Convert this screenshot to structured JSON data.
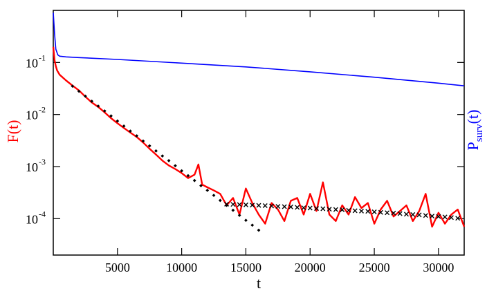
{
  "chart_data": {
    "type": "line",
    "xlabel": "t",
    "ylabel_left": "F(t)",
    "ylabel_right": "P",
    "ylabel_right_sub": "surv",
    "ylabel_right_suffix": "(t)",
    "xlim": [
      0,
      32000
    ],
    "ylim": [
      2e-05,
      1
    ],
    "yscale": "log",
    "grid": false,
    "x_ticks": [
      5000,
      10000,
      15000,
      20000,
      25000,
      30000
    ],
    "x_tick_labels": [
      "5000",
      "10000",
      "15000",
      "20000",
      "25000",
      "30000"
    ],
    "y_ticks": [
      0.1,
      0.01,
      0.001,
      0.0001
    ],
    "y_tick_base": "10",
    "y_tick_exponents": [
      "-1",
      "-2",
      "-3",
      "-4"
    ],
    "colors": {
      "F": "#ff0000",
      "P": "#0000ff",
      "fit": "#000000",
      "axes": "#000000"
    },
    "series": [
      {
        "key": "P",
        "style": "line",
        "x": [
          0,
          100,
          200,
          350,
          500,
          1000,
          2000,
          5000,
          10000,
          15000,
          20000,
          25000,
          30000,
          32000
        ],
        "y": [
          0.9,
          0.35,
          0.18,
          0.14,
          0.132,
          0.128,
          0.124,
          0.114,
          0.097,
          0.082,
          0.066,
          0.052,
          0.04,
          0.0355
        ]
      },
      {
        "key": "F",
        "style": "line",
        "x": [
          0,
          50,
          100,
          200,
          300,
          500,
          1000,
          1500,
          2000,
          2500,
          3000,
          3500,
          4000,
          4500,
          5000,
          5500,
          6000,
          6500,
          7000,
          7500,
          8000,
          8500,
          9000,
          9500,
          10000,
          10500,
          11000,
          11300,
          11600,
          12000,
          12500,
          13000,
          13500,
          14000,
          14500,
          15000,
          15500,
          16000,
          16500,
          17000,
          17500,
          18000,
          18500,
          19000,
          19500,
          20000,
          20500,
          21000,
          21500,
          22000,
          22500,
          23000,
          23500,
          24000,
          24500,
          25000,
          25500,
          26000,
          26500,
          27000,
          27500,
          28000,
          28500,
          29000,
          29500,
          30000,
          30500,
          31000,
          31500,
          32000
        ],
        "y": [
          0.2,
          0.15,
          0.11,
          0.085,
          0.07,
          0.058,
          0.045,
          0.036,
          0.029,
          0.022,
          0.017,
          0.014,
          0.011,
          0.0085,
          0.0068,
          0.0055,
          0.0045,
          0.0037,
          0.0029,
          0.0022,
          0.0017,
          0.0013,
          0.00105,
          0.0009,
          0.00075,
          0.0006,
          0.0007,
          0.0011,
          0.00045,
          0.0004,
          0.00035,
          0.0003,
          0.00018,
          0.00025,
          0.00012,
          0.00038,
          0.0002,
          0.00012,
          8e-05,
          0.0002,
          0.00015,
          9e-05,
          0.00022,
          0.00025,
          0.00012,
          0.0003,
          0.00014,
          0.0005,
          0.00012,
          9e-05,
          0.00018,
          0.00012,
          0.00026,
          0.00016,
          0.0002,
          8e-05,
          0.00015,
          0.00022,
          0.00011,
          0.00014,
          0.00018,
          9e-05,
          0.00014,
          0.0003,
          7e-05,
          0.00013,
          8e-05,
          0.00012,
          0.00015,
          7e-05
        ]
      },
      {
        "key": "fit_dots",
        "style": "points-diamond",
        "x": [
          1500,
          2000,
          2500,
          3000,
          3500,
          4000,
          4500,
          5000,
          5500,
          6000,
          6500,
          7000,
          7500,
          8000,
          8500,
          9000,
          9500,
          10000,
          10500,
          11000,
          11500,
          12000,
          12500,
          13000,
          13500,
          14000,
          14500,
          15000,
          15500,
          16000
        ],
        "y": [
          0.035,
          0.028,
          0.0225,
          0.018,
          0.0145,
          0.0117,
          0.0094,
          0.0075,
          0.006,
          0.0048,
          0.0039,
          0.0031,
          0.0025,
          0.002,
          0.0016,
          0.0013,
          0.00104,
          0.00083,
          0.00067,
          0.00054,
          0.00043,
          0.00035,
          0.00028,
          0.000224,
          0.00018,
          0.000145,
          0.000116,
          9.3e-05,
          7.5e-05,
          6e-05
        ]
      },
      {
        "key": "fit_crosses",
        "style": "points-x",
        "x": [
          13500,
          14000,
          14500,
          15000,
          15500,
          16000,
          16500,
          17000,
          17500,
          18000,
          18500,
          19000,
          19500,
          20000,
          20500,
          21000,
          21500,
          22000,
          22500,
          23000,
          23500,
          24000,
          24500,
          25000,
          25500,
          26000,
          26500,
          27000,
          27500,
          28000,
          28500,
          29000,
          29500,
          30000,
          30500,
          31000,
          31500
        ],
        "y": [
          0.00019,
          0.000188,
          0.000186,
          0.000184,
          0.000182,
          0.00018,
          0.000178,
          0.000175,
          0.000172,
          0.00017,
          0.000168,
          0.000165,
          0.000162,
          0.00016,
          0.000157,
          0.000155,
          0.000152,
          0.00015,
          0.000148,
          0.000145,
          0.000142,
          0.00014,
          0.000138,
          0.000135,
          0.000132,
          0.00013,
          0.000128,
          0.000125,
          0.000122,
          0.00012,
          0.000118,
          0.000115,
          0.000112,
          0.00011,
          0.000108,
          0.000105,
          0.000102
        ]
      }
    ]
  }
}
